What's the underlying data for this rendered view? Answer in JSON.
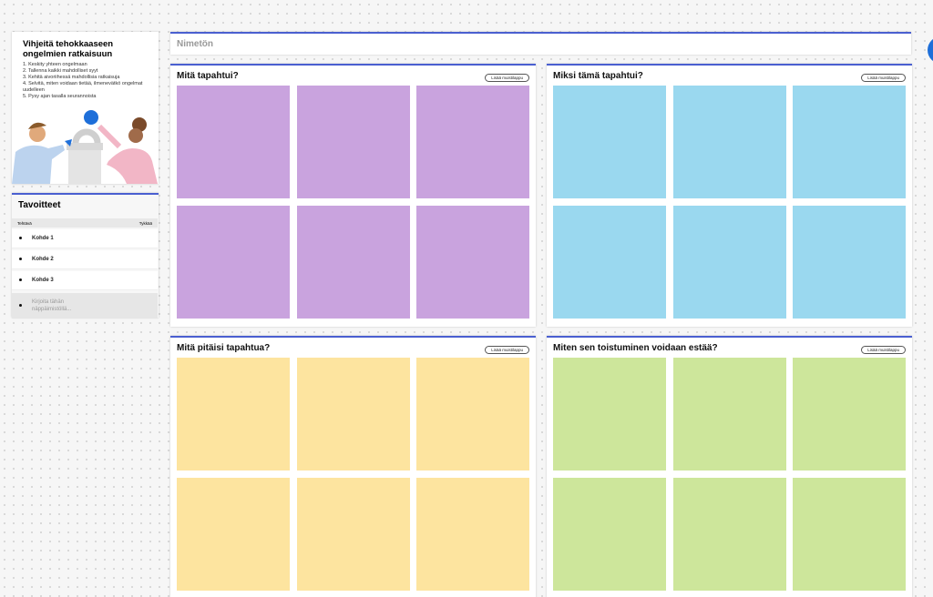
{
  "tips": {
    "title": "Vihjeitä tehokkaaseen ongelmien ratkaisuun",
    "steps": [
      "1. Keskity yhteen ongelmaan",
      "2. Tallenna kaikki mahdolliset syyt",
      "3. Kehitä aivoriihessä mahdollisia ratkaisuja",
      "4. Selvitä, miten voidaan tietää, ilmenevätkö ongelmat uudelleen",
      "5. Pysy ajan tasalla seurannoista"
    ]
  },
  "goals": {
    "title": "Tavoitteet",
    "columns": [
      "Tehtävä",
      "Tykkää"
    ],
    "items": [
      "Kohde 1",
      "Kohde 2",
      "Kohde 3"
    ],
    "placeholder": "Kirjoita tähän näppäimistöllä..."
  },
  "banner": {
    "title": "Nimetön"
  },
  "panels": [
    {
      "title": "Mitä tapahtui?",
      "button": "Lisää muistilappu",
      "color": "#c9a3de"
    },
    {
      "title": "Miksi tämä tapahtui?",
      "button": "Lisää muistilappu",
      "color": "#9ad8ef"
    },
    {
      "title": "Mitä pitäisi tapahtua?",
      "button": "Lisää muistilappu",
      "color": "#fde49f"
    },
    {
      "title": "Miten sen toistuminen voidaan estää?",
      "button": "Lisää muistilappu",
      "color": "#cde69b"
    }
  ]
}
